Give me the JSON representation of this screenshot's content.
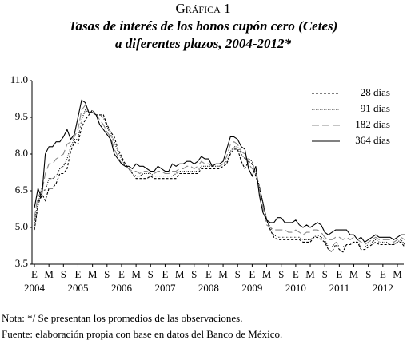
{
  "chart_data": {
    "type": "line",
    "kicker": "Gráfica 1",
    "title": [
      "Tasas de interés de los bonos cupón cero (Cetes)",
      "a diferentes plazos, 2004-2012*"
    ],
    "categories": [
      "E",
      null,
      null,
      null,
      "M",
      null,
      null,
      null,
      "S",
      null,
      null,
      null,
      "E",
      null,
      null,
      null,
      "M",
      null,
      null,
      null,
      "S",
      null,
      null,
      null,
      "E",
      null,
      null,
      null,
      "M",
      null,
      null,
      null,
      "S",
      null,
      null,
      null,
      "E",
      null,
      null,
      null,
      "M",
      null,
      null,
      null,
      "S",
      null,
      null,
      null,
      "E",
      null,
      null,
      null,
      "M",
      null,
      null,
      null,
      "S",
      null,
      null,
      null,
      "E",
      null,
      null,
      null,
      "M",
      null,
      null,
      null,
      "S",
      null,
      null,
      null,
      "E",
      null,
      null,
      null,
      "M",
      null,
      null,
      null,
      "S",
      null,
      null,
      null,
      "E",
      null,
      null,
      null,
      "M",
      null,
      null,
      null,
      "S",
      null,
      null,
      null,
      "E",
      null,
      null,
      null,
      "M",
      null,
      null
    ],
    "years": [
      "2004",
      "2005",
      "2006",
      "2007",
      "2008",
      "2009",
      "2010",
      "2011",
      "2012"
    ],
    "ylim": [
      3.5,
      11.0
    ],
    "yticks": [
      3.5,
      {
        "value": 5.0,
        "label": "5.0"
      },
      6.5,
      {
        "value": 8.0,
        "label": "8.0"
      },
      9.5,
      {
        "value": 11.0,
        "label": "11.0"
      }
    ],
    "series": [
      {
        "name": "28 días",
        "color": "#000000",
        "dash": "3,2",
        "values": [
          4.9,
          5.9,
          6.4,
          6.1,
          6.6,
          6.6,
          6.8,
          7.2,
          7.2,
          7.4,
          8.1,
          8.5,
          8.4,
          9.1,
          9.4,
          9.6,
          9.8,
          9.6,
          9.6,
          9.6,
          9.2,
          8.9,
          8.7,
          8.2,
          7.9,
          7.6,
          7.4,
          7.2,
          7.0,
          7.0,
          7.0,
          7.0,
          7.1,
          7.0,
          7.0,
          7.0,
          7.0,
          7.0,
          7.0,
          7.0,
          7.2,
          7.2,
          7.2,
          7.2,
          7.2,
          7.2,
          7.4,
          7.4,
          7.4,
          7.4,
          7.4,
          7.4,
          7.5,
          7.6,
          8.0,
          8.2,
          8.2,
          7.7,
          7.4,
          7.7,
          7.6,
          7.1,
          6.6,
          6.0,
          5.3,
          4.9,
          4.6,
          4.5,
          4.5,
          4.5,
          4.5,
          4.5,
          4.5,
          4.5,
          4.4,
          4.4,
          4.4,
          4.6,
          4.6,
          4.5,
          4.4,
          4.1,
          4.0,
          4.3,
          4.1,
          4.0,
          4.3,
          4.3,
          4.4,
          4.4,
          4.1,
          4.1,
          4.2,
          4.3,
          4.4,
          4.3,
          4.3,
          4.3,
          4.3,
          4.3,
          4.4,
          4.4,
          4.2
        ]
      },
      {
        "name": "91 días",
        "color": "#000000",
        "dash": "1,1.5",
        "values": [
          5.2,
          6.0,
          6.6,
          6.5,
          7.0,
          7.0,
          7.1,
          7.4,
          7.5,
          7.8,
          8.3,
          8.6,
          8.6,
          9.4,
          9.8,
          9.7,
          9.7,
          9.6,
          9.6,
          9.5,
          9.1,
          8.8,
          8.5,
          8.1,
          7.8,
          7.5,
          7.4,
          7.2,
          7.1,
          7.1,
          7.2,
          7.2,
          7.2,
          7.1,
          7.1,
          7.1,
          7.1,
          7.1,
          7.1,
          7.2,
          7.3,
          7.3,
          7.3,
          7.3,
          7.3,
          7.3,
          7.5,
          7.5,
          7.5,
          7.5,
          7.5,
          7.5,
          7.6,
          7.7,
          8.1,
          8.3,
          8.3,
          8.0,
          7.8,
          7.8,
          7.7,
          7.2,
          6.7,
          6.0,
          5.3,
          5.0,
          4.7,
          4.6,
          4.6,
          4.6,
          4.6,
          4.6,
          4.6,
          4.6,
          4.5,
          4.5,
          4.5,
          4.6,
          4.7,
          4.6,
          4.5,
          4.2,
          4.2,
          4.4,
          4.2,
          4.2,
          4.3,
          4.3,
          4.4,
          4.4,
          4.2,
          4.2,
          4.3,
          4.4,
          4.5,
          4.4,
          4.4,
          4.4,
          4.3,
          4.3,
          4.4,
          4.5,
          4.3
        ]
      },
      {
        "name": "182 días",
        "color": "#888888",
        "dash": "9,4",
        "values": [
          5.4,
          6.3,
          6.4,
          7.2,
          7.6,
          7.6,
          7.8,
          7.9,
          8.0,
          8.4,
          8.5,
          8.7,
          9.0,
          9.8,
          10.0,
          9.7,
          9.7,
          9.6,
          9.4,
          9.2,
          8.9,
          8.7,
          8.2,
          7.9,
          7.6,
          7.5,
          7.4,
          7.3,
          7.3,
          7.2,
          7.3,
          7.3,
          7.2,
          7.2,
          7.3,
          7.3,
          7.2,
          7.2,
          7.3,
          7.3,
          7.4,
          7.4,
          7.5,
          7.5,
          7.4,
          7.5,
          7.7,
          7.6,
          7.6,
          7.5,
          7.5,
          7.5,
          7.6,
          7.9,
          8.4,
          8.5,
          8.4,
          8.1,
          8.0,
          7.6,
          7.4,
          7.3,
          6.5,
          5.8,
          5.1,
          5.0,
          4.9,
          4.9,
          4.9,
          4.9,
          4.8,
          4.8,
          4.9,
          4.8,
          4.7,
          4.8,
          4.8,
          4.9,
          4.9,
          4.8,
          4.6,
          4.5,
          4.5,
          4.6,
          4.6,
          4.5,
          4.6,
          4.5,
          4.6,
          4.5,
          4.4,
          4.3,
          4.4,
          4.5,
          4.6,
          4.5,
          4.5,
          4.5,
          4.5,
          4.4,
          4.5,
          4.6,
          4.5
        ]
      },
      {
        "name": "364 días",
        "color": "#000000",
        "dash": "none",
        "values": [
          5.8,
          6.6,
          6.2,
          8.0,
          8.3,
          8.3,
          8.5,
          8.5,
          8.7,
          9.0,
          8.6,
          8.8,
          9.5,
          10.2,
          10.1,
          9.7,
          9.7,
          9.6,
          9.2,
          9.0,
          8.8,
          8.6,
          8.0,
          7.8,
          7.6,
          7.5,
          7.5,
          7.4,
          7.6,
          7.5,
          7.5,
          7.4,
          7.3,
          7.3,
          7.5,
          7.4,
          7.3,
          7.3,
          7.6,
          7.5,
          7.6,
          7.6,
          7.7,
          7.7,
          7.6,
          7.7,
          7.9,
          7.8,
          7.8,
          7.5,
          7.6,
          7.6,
          7.7,
          8.2,
          8.7,
          8.7,
          8.6,
          8.3,
          8.2,
          7.4,
          7.1,
          7.5,
          6.3,
          5.6,
          5.3,
          5.2,
          5.2,
          5.4,
          5.4,
          5.2,
          5.2,
          5.2,
          5.3,
          5.1,
          5.0,
          5.1,
          5.0,
          5.1,
          5.2,
          5.1,
          4.8,
          4.7,
          4.8,
          4.9,
          4.9,
          4.9,
          4.9,
          4.7,
          4.7,
          4.5,
          4.6,
          4.4,
          4.5,
          4.6,
          4.7,
          4.6,
          4.6,
          4.6,
          4.6,
          4.5,
          4.6,
          4.7,
          4.7
        ]
      }
    ],
    "notes": [
      "Nota: */ Se presentan los promedios de las observaciones.",
      "Fuente: elaboración propia con base en datos del Banco de México."
    ]
  }
}
